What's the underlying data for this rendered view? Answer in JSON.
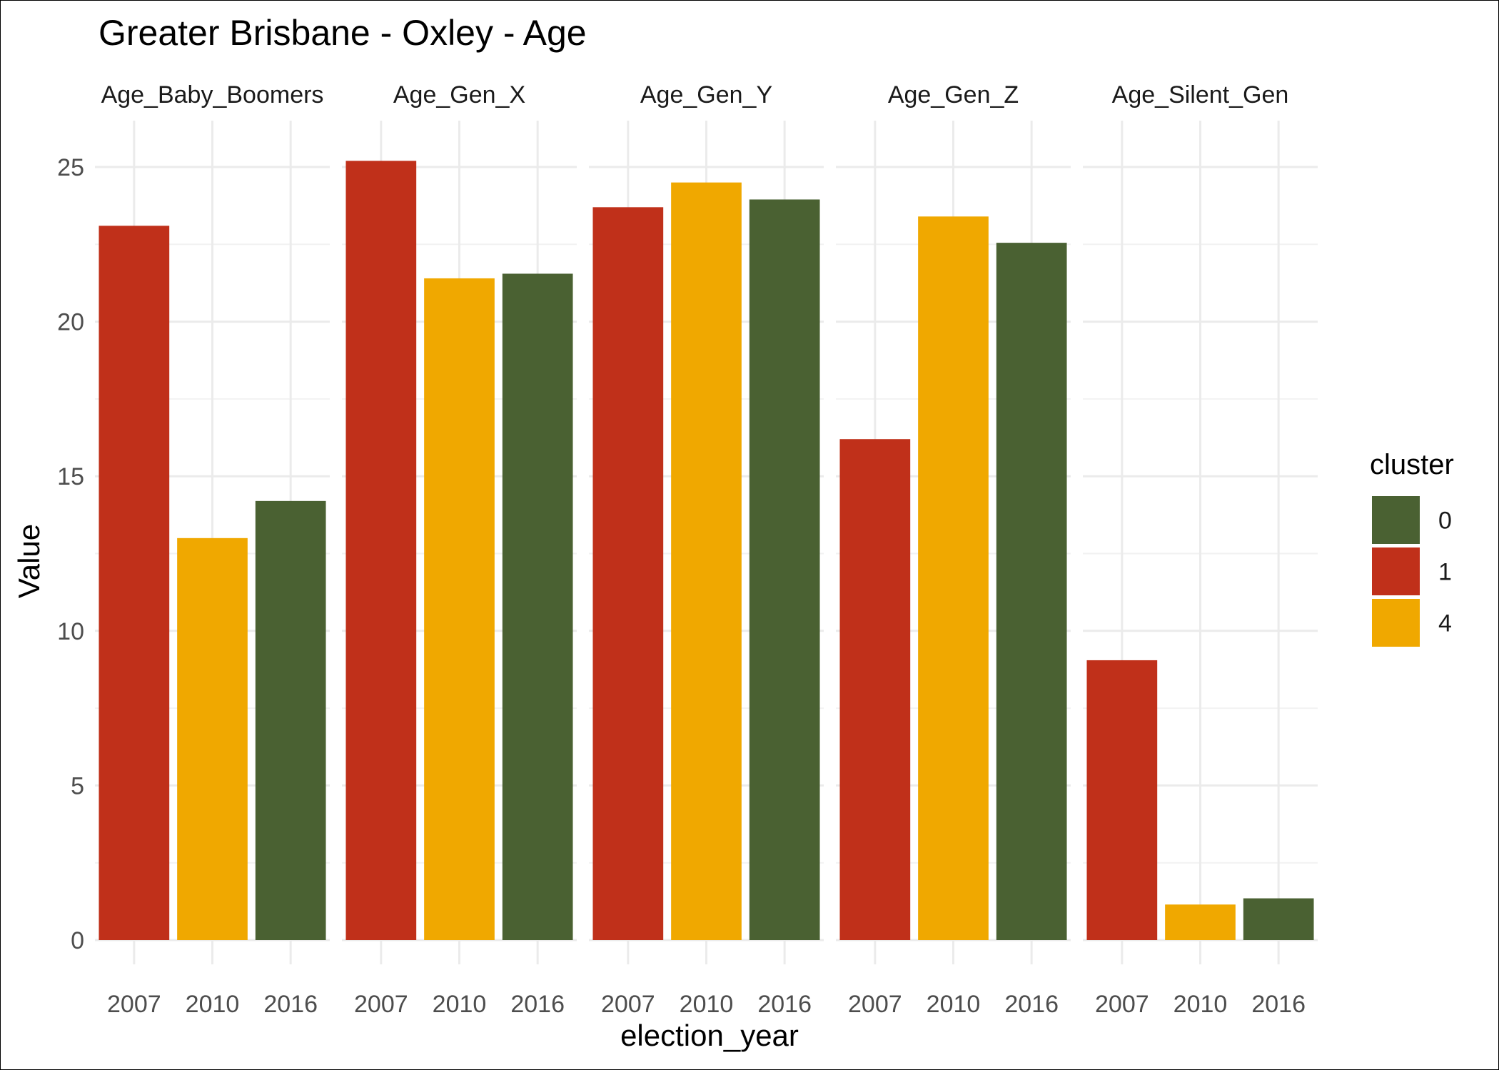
{
  "chart_data": {
    "type": "bar",
    "title": "Greater Brisbane - Oxley - Age",
    "xlabel": "election_year",
    "ylabel": "Value",
    "ylim": [
      0,
      26.5
    ],
    "y_ticks": [
      0,
      5,
      10,
      15,
      20,
      25
    ],
    "categories": [
      "2007",
      "2010",
      "2016"
    ],
    "facets": [
      {
        "name": "Age_Baby_Boomers",
        "values": [
          23.1,
          13.0,
          14.2
        ],
        "clusters": [
          "1",
          "4",
          "0"
        ]
      },
      {
        "name": "Age_Gen_X",
        "values": [
          25.2,
          21.4,
          21.55
        ],
        "clusters": [
          "1",
          "4",
          "0"
        ]
      },
      {
        "name": "Age_Gen_Y",
        "values": [
          23.7,
          24.5,
          23.95
        ],
        "clusters": [
          "1",
          "4",
          "0"
        ]
      },
      {
        "name": "Age_Gen_Z",
        "values": [
          16.2,
          23.4,
          22.55
        ],
        "clusters": [
          "1",
          "4",
          "0"
        ]
      },
      {
        "name": "Age_Silent_Gen",
        "values": [
          9.05,
          1.15,
          1.35
        ],
        "clusters": [
          "1",
          "4",
          "0"
        ]
      }
    ],
    "legend": {
      "title": "cluster",
      "placement": "right",
      "entries": [
        {
          "label": "0",
          "color": "#4a6132"
        },
        {
          "label": "1",
          "color": "#c0301a"
        },
        {
          "label": "4",
          "color": "#f0a800"
        }
      ]
    },
    "grid": true
  }
}
